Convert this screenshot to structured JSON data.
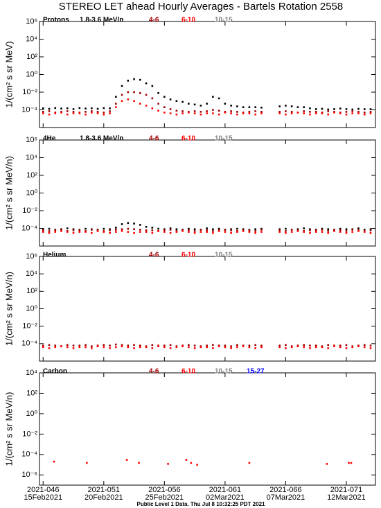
{
  "title": "STEREO LET ahead Hourly Averages - Bartels Rotation 2558",
  "footer": "Public Level 1 Data. Thu Jul  8 10:32:25 PDT 2021",
  "chart_data": [
    {
      "type": "scatter",
      "title": "Protons",
      "ylabel": "1/(cm² s sr MeV)",
      "yscale": "log",
      "xlim": [
        45.7,
        73.4
      ],
      "ylim": [
        1e-06,
        1000000.0
      ],
      "yticks": [
        {
          "value": 0.0001,
          "label": "10⁻⁴"
        },
        {
          "value": 0.01,
          "label": "10⁻²"
        },
        {
          "value": 1,
          "label": "10⁰"
        },
        {
          "value": 100,
          "label": "10²"
        },
        {
          "value": 10000,
          "label": "10⁴"
        },
        {
          "value": 1000000,
          "label": "10⁶"
        }
      ],
      "x": [
        46,
        46.5,
        47,
        47.5,
        48,
        48.5,
        49,
        49.5,
        50,
        50.5,
        51,
        51.5,
        52,
        52.5,
        53,
        53.5,
        54,
        54.5,
        55,
        55.5,
        56,
        56.5,
        57,
        57.5,
        58,
        58.5,
        59,
        59.5,
        60,
        60.5,
        61,
        61.5,
        62,
        62.5,
        63,
        63.5,
        64,
        64.5,
        65,
        65.5,
        66,
        66.5,
        67,
        67.5,
        68,
        68.5,
        69,
        69.5,
        70,
        70.5,
        71,
        71.5,
        72,
        72.5,
        73
      ],
      "series": [
        {
          "name": "1.8-3.6 MeV/n",
          "color": "#000000",
          "values": [
            0.00015,
            0.00013,
            0.00016,
            0.00014,
            0.00015,
            0.00012,
            0.00016,
            0.00014,
            0.00015,
            0.00013,
            0.00016,
            0.00015,
            0.003,
            0.05,
            0.2,
            0.3,
            0.25,
            0.1,
            0.05,
            0.008,
            0.003,
            0.0015,
            0.001,
            0.0008,
            0.0005,
            0.0004,
            0.0003,
            0.0005,
            0.003,
            0.002,
            0.0005,
            0.0003,
            0.00025,
            0.0002,
            0.0002,
            0.0002,
            0.00018,
            null,
            null,
            0.00025,
            0.0003,
            0.00025,
            0.0002,
            0.0002,
            0.00015,
            0.00012,
            0.00013,
            0.00011,
            0.00012,
            0.00014,
            0.00012,
            0.00011,
            0.00013,
            0.00012,
            0.00012
          ]
        },
        {
          "name": "4-6",
          "color": "#a00000",
          "values": [
            6e-05,
            7e-05,
            5e-05,
            6e-05,
            7e-05,
            6e-05,
            5e-05,
            6e-05,
            7e-05,
            6e-05,
            5e-05,
            7e-05,
            0.0005,
            0.005,
            0.01,
            0.01,
            0.008,
            0.005,
            0.002,
            0.0005,
            0.0002,
            0.00012,
            8e-05,
            7e-05,
            6e-05,
            7e-05,
            6e-05,
            7e-05,
            0.0001,
            8e-05,
            6e-05,
            7e-05,
            6e-05,
            5e-05,
            6e-05,
            7e-05,
            6e-05,
            null,
            null,
            6e-05,
            7e-05,
            6e-05,
            5e-05,
            7e-05,
            6e-05,
            6e-05,
            5e-05,
            7e-05,
            6e-05,
            5e-05,
            6e-05,
            7e-05,
            6e-05,
            5e-05,
            6e-05
          ]
        },
        {
          "name": "6-10",
          "color": "#ff0000",
          "values": [
            4e-05,
            3e-05,
            4e-05,
            5e-05,
            3e-05,
            4e-05,
            4e-05,
            3e-05,
            5e-05,
            4e-05,
            3e-05,
            4e-05,
            0.0002,
            0.001,
            0.0015,
            0.001,
            0.0005,
            0.0003,
            0.00015,
            8e-05,
            5e-05,
            4e-05,
            3e-05,
            4e-05,
            5e-05,
            4e-05,
            3e-05,
            4e-05,
            4e-05,
            3e-05,
            5e-05,
            4e-05,
            3e-05,
            4e-05,
            4e-05,
            3e-05,
            4e-05,
            null,
            null,
            4e-05,
            3e-05,
            4e-05,
            5e-05,
            4e-05,
            3e-05,
            4e-05,
            4e-05,
            3e-05,
            5e-05,
            4e-05,
            3e-05,
            4e-05,
            4e-05,
            3e-05,
            4e-05
          ]
        },
        {
          "name": "10-15",
          "color": "#808080",
          "values": [
            null,
            null,
            null,
            null,
            null,
            null,
            null,
            null,
            null,
            null,
            null,
            null,
            null,
            null,
            null,
            null,
            null,
            null,
            null,
            null,
            null,
            null,
            null,
            null,
            null,
            null,
            null,
            null,
            null,
            null,
            null,
            null,
            null,
            null,
            null,
            null,
            null,
            null,
            null,
            null,
            null,
            null,
            null,
            null,
            null,
            null,
            null,
            null,
            null,
            null,
            null,
            null,
            null,
            null,
            null
          ]
        }
      ]
    },
    {
      "type": "scatter",
      "title": "4He",
      "ylabel": "1/(cm² s sr MeV/n)",
      "yscale": "log",
      "xlim": [
        45.7,
        73.4
      ],
      "ylim": [
        1e-06,
        1000000.0
      ],
      "yticks": [
        {
          "value": 0.0001,
          "label": "10⁻⁴"
        },
        {
          "value": 0.01,
          "label": "10⁻²"
        },
        {
          "value": 1,
          "label": "10⁰"
        },
        {
          "value": 100,
          "label": "10²"
        },
        {
          "value": 10000,
          "label": "10⁴"
        },
        {
          "value": 1000000,
          "label": "10⁶"
        }
      ],
      "x": [
        46,
        46.5,
        47,
        47.5,
        48,
        48.5,
        49,
        49.5,
        50,
        50.5,
        51,
        51.5,
        52,
        52.5,
        53,
        53.5,
        54,
        54.5,
        55,
        55.5,
        56,
        56.5,
        57,
        57.5,
        58,
        58.5,
        59,
        59.5,
        60,
        60.5,
        61,
        61.5,
        62,
        62.5,
        63,
        63.5,
        64,
        64.5,
        65,
        65.5,
        66,
        66.5,
        67,
        67.5,
        68,
        68.5,
        69,
        69.5,
        70,
        70.5,
        71,
        71.5,
        72,
        72.5,
        73
      ],
      "series": [
        {
          "name": "1.8-3.6 MeV/n",
          "color": "#000000",
          "values": [
            8e-05,
            9e-05,
            7e-05,
            8e-05,
            0.0001,
            8e-05,
            7e-05,
            9e-05,
            8e-05,
            7e-05,
            9e-05,
            8e-05,
            0.00012,
            0.0003,
            0.0004,
            0.00035,
            0.00025,
            0.00015,
            0.00012,
            9e-05,
            8e-05,
            0.0001,
            8e-05,
            7e-05,
            9e-05,
            8e-05,
            7e-05,
            0.0001,
            8e-05,
            9e-05,
            7e-05,
            8e-05,
            9e-05,
            8e-05,
            7e-05,
            8e-05,
            9e-05,
            null,
            null,
            8e-05,
            9e-05,
            7e-05,
            8e-05,
            0.0001,
            8e-05,
            7e-05,
            9e-05,
            8e-05,
            7e-05,
            9e-05,
            8e-05,
            8e-05,
            0.0001,
            7e-05,
            8e-05
          ]
        },
        {
          "name": "4-6",
          "color": "#a00000",
          "values": [
            6e-05,
            5e-05,
            6e-05,
            7e-05,
            5e-05,
            6e-05,
            6e-05,
            5e-05,
            7e-05,
            6e-05,
            5e-05,
            6e-05,
            7e-05,
            8e-05,
            9e-05,
            8e-05,
            7e-05,
            6e-05,
            6e-05,
            5e-05,
            6e-05,
            7e-05,
            5e-05,
            6e-05,
            6e-05,
            5e-05,
            7e-05,
            6e-05,
            5e-05,
            6e-05,
            7e-05,
            6e-05,
            5e-05,
            6e-05,
            6e-05,
            5e-05,
            7e-05,
            null,
            null,
            6e-05,
            5e-05,
            7e-05,
            6e-05,
            5e-05,
            6e-05,
            6e-05,
            7e-05,
            5e-05,
            6e-05,
            6e-05,
            5e-05,
            7e-05,
            6e-05,
            5e-05,
            6e-05
          ]
        },
        {
          "name": "6-10",
          "color": "#ff0000",
          "values": [
            4e-05,
            3e-05,
            4e-05,
            5e-05,
            4e-05,
            3e-05,
            4e-05,
            4e-05,
            3e-05,
            5e-05,
            4e-05,
            3e-05,
            4e-05,
            5e-05,
            4e-05,
            3e-05,
            4e-05,
            4e-05,
            3e-05,
            5e-05,
            4e-05,
            3e-05,
            4e-05,
            5e-05,
            4e-05,
            3e-05,
            4e-05,
            4e-05,
            3e-05,
            5e-05,
            4e-05,
            3e-05,
            4e-05,
            5e-05,
            4e-05,
            3e-05,
            4e-05,
            null,
            null,
            4e-05,
            3e-05,
            4e-05,
            5e-05,
            4e-05,
            3e-05,
            4e-05,
            4e-05,
            3e-05,
            5e-05,
            4e-05,
            3e-05,
            4e-05,
            5e-05,
            4e-05,
            3e-05
          ]
        },
        {
          "name": "10-15",
          "color": "#808080",
          "values": [
            null,
            null,
            null,
            null,
            null,
            null,
            null,
            null,
            null,
            null,
            null,
            null,
            null,
            null,
            null,
            null,
            null,
            null,
            null,
            null,
            null,
            null,
            null,
            null,
            null,
            null,
            null,
            null,
            null,
            null,
            null,
            null,
            null,
            null,
            null,
            null,
            null,
            null,
            null,
            null,
            null,
            null,
            null,
            null,
            null,
            null,
            null,
            null,
            null,
            null,
            null,
            null,
            null,
            null,
            null
          ]
        }
      ]
    },
    {
      "type": "scatter",
      "title": "Helium",
      "ylabel": "1/(cm² s sr MeV/n)",
      "yscale": "log",
      "xlim": [
        45.7,
        73.4
      ],
      "ylim": [
        1e-06,
        1000000.0
      ],
      "yticks": [
        {
          "value": 0.0001,
          "label": "10⁻⁴"
        },
        {
          "value": 0.01,
          "label": "10⁻²"
        },
        {
          "value": 1,
          "label": "10⁰"
        },
        {
          "value": 100,
          "label": "10²"
        },
        {
          "value": 10000,
          "label": "10⁴"
        },
        {
          "value": 1000000,
          "label": "10⁶"
        }
      ],
      "x": [
        46,
        46.5,
        47,
        47.5,
        48,
        48.5,
        49,
        49.5,
        50,
        50.5,
        51,
        51.5,
        52,
        52.5,
        53,
        53.5,
        54,
        54.5,
        55,
        55.5,
        56,
        56.5,
        57,
        57.5,
        58,
        58.5,
        59,
        59.5,
        60,
        60.5,
        61,
        61.5,
        62,
        62.5,
        63,
        63.5,
        64,
        64.5,
        65,
        65.5,
        66,
        66.5,
        67,
        67.5,
        68,
        68.5,
        69,
        69.5,
        70,
        70.5,
        71,
        71.5,
        72,
        72.5,
        73
      ],
      "series": [
        {
          "name": "4-6",
          "color": "#a00000",
          "values": [
            6e-05,
            7e-05,
            6e-05,
            5e-05,
            7e-05,
            6e-05,
            6e-05,
            7e-05,
            5e-05,
            6e-05,
            7e-05,
            6e-05,
            8e-05,
            7e-05,
            6e-05,
            7e-05,
            6e-05,
            5e-05,
            7e-05,
            6e-05,
            6e-05,
            7e-05,
            5e-05,
            6e-05,
            7e-05,
            6e-05,
            5e-05,
            6e-05,
            7e-05,
            6e-05,
            6e-05,
            5e-05,
            7e-05,
            6e-05,
            6e-05,
            7e-05,
            6e-05,
            null,
            null,
            6e-05,
            7e-05,
            5e-05,
            6e-05,
            7e-05,
            6e-05,
            6e-05,
            5e-05,
            7e-05,
            6e-05,
            6e-05,
            7e-05,
            5e-05,
            6e-05,
            7e-05,
            6e-05
          ]
        },
        {
          "name": "6-10",
          "color": "#ff0000",
          "values": [
            4e-05,
            3e-05,
            4e-05,
            5e-05,
            4e-05,
            3e-05,
            4e-05,
            4e-05,
            3e-05,
            5e-05,
            4e-05,
            3e-05,
            4e-05,
            5e-05,
            4e-05,
            3e-05,
            4e-05,
            4e-05,
            3e-05,
            5e-05,
            4e-05,
            3e-05,
            4e-05,
            5e-05,
            4e-05,
            3e-05,
            4e-05,
            4e-05,
            3e-05,
            5e-05,
            4e-05,
            3e-05,
            4e-05,
            5e-05,
            4e-05,
            3e-05,
            4e-05,
            null,
            null,
            4e-05,
            3e-05,
            4e-05,
            5e-05,
            4e-05,
            3e-05,
            4e-05,
            4e-05,
            3e-05,
            5e-05,
            4e-05,
            3e-05,
            4e-05,
            5e-05,
            4e-05,
            3e-05
          ]
        },
        {
          "name": "10-15",
          "color": "#808080",
          "values": [
            null,
            null,
            null,
            null,
            null,
            null,
            null,
            null,
            null,
            null,
            null,
            null,
            null,
            null,
            null,
            null,
            null,
            null,
            null,
            null,
            null,
            null,
            null,
            null,
            null,
            null,
            null,
            null,
            null,
            null,
            null,
            null,
            null,
            null,
            null,
            null,
            null,
            null,
            null,
            null,
            null,
            null,
            null,
            null,
            null,
            null,
            null,
            null,
            null,
            null,
            null,
            null,
            null,
            null,
            null
          ]
        }
      ]
    },
    {
      "type": "scatter",
      "title": "Carbon",
      "ylabel": "1/(cm² s sr MeV/n)",
      "yscale": "log",
      "xlim": [
        45.7,
        73.4
      ],
      "ylim": [
        1e-07,
        10000.0
      ],
      "yticks": [
        {
          "value": 1e-06,
          "label": "10⁻⁶"
        },
        {
          "value": 0.0001,
          "label": "10⁻⁴"
        },
        {
          "value": 0.01,
          "label": "10⁻²"
        },
        {
          "value": 1,
          "label": "10⁰"
        },
        {
          "value": 100,
          "label": "10²"
        },
        {
          "value": 10000,
          "label": "10⁴"
        }
      ],
      "xticks": [
        {
          "value": 46,
          "label": "2021-046"
        },
        {
          "value": 51,
          "label": "2021-051"
        },
        {
          "value": 56,
          "label": "2021-056"
        },
        {
          "value": 61,
          "label": "2021-061"
        },
        {
          "value": 66,
          "label": "2021-066"
        },
        {
          "value": 71,
          "label": "2021-071"
        }
      ],
      "xtick_dates": [
        "15Feb2021",
        "20Feb2021",
        "25Feb2021",
        "02Mar2021",
        "07Mar2021",
        "12Mar2021"
      ],
      "x": [
        46.9,
        49.6,
        52.9,
        53.9,
        56.3,
        57.8,
        58.2,
        58.7,
        63.0,
        69.4,
        71.2,
        71.4
      ],
      "series": [
        {
          "name": "4-6",
          "color": "#a00000",
          "values": [
            null,
            null,
            null,
            null,
            null,
            null,
            null,
            null,
            null,
            null,
            null,
            null
          ]
        },
        {
          "name": "6-10",
          "color": "#ff0000",
          "values": [
            2e-05,
            1.5e-05,
            3e-05,
            1.5e-05,
            1.2e-05,
            3e-05,
            1.5e-05,
            1e-05,
            1.5e-05,
            1.2e-05,
            1.5e-05,
            1.5e-05
          ]
        },
        {
          "name": "10-15",
          "color": "#808080",
          "values": [
            null,
            null,
            null,
            null,
            null,
            null,
            null,
            null,
            null,
            null,
            null,
            null
          ]
        },
        {
          "name": "15-27",
          "color": "#0000ff",
          "values": [
            null,
            null,
            null,
            null,
            null,
            null,
            null,
            null,
            null,
            null,
            null,
            null
          ]
        }
      ]
    }
  ]
}
